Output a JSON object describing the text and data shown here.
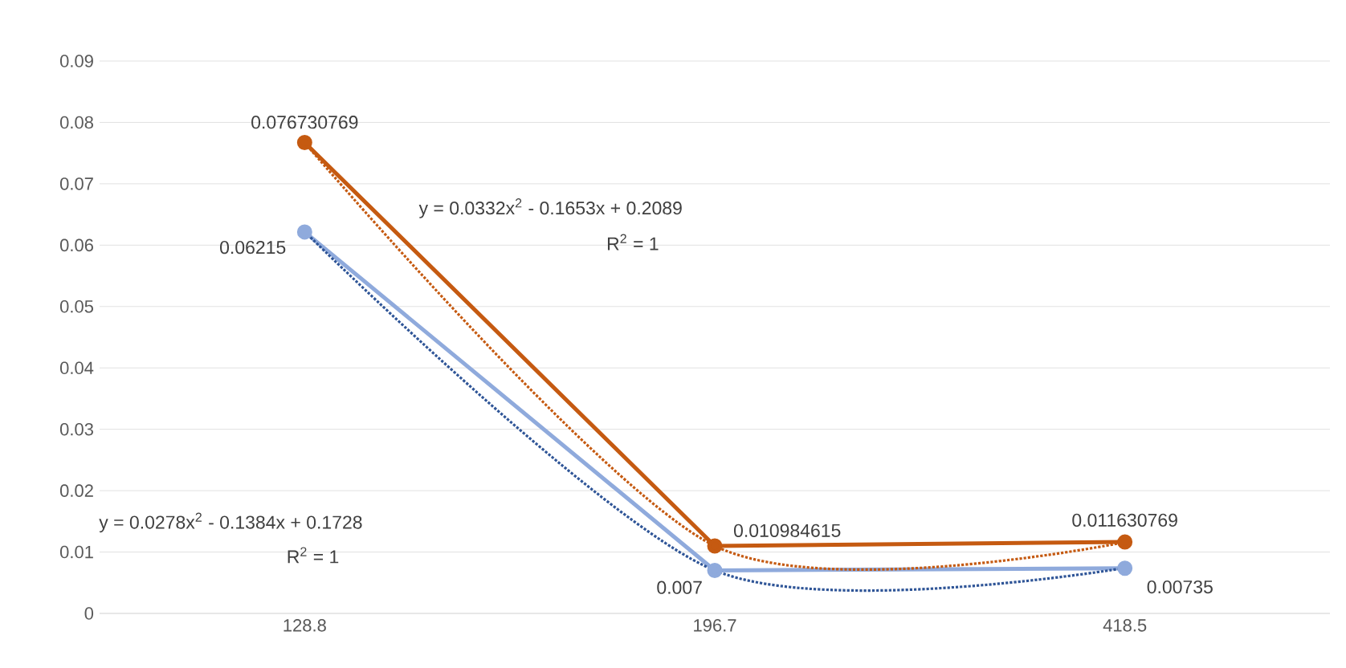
{
  "chart_data": {
    "type": "line",
    "categories": [
      "128.8",
      "196.7",
      "418.5"
    ],
    "ylim": [
      0,
      0.09
    ],
    "yticks": [
      0,
      0.01,
      0.02,
      0.03,
      0.04,
      0.05,
      0.06,
      0.07,
      0.08,
      0.09
    ],
    "grid": "y",
    "marker": "circle",
    "series": [
      {
        "color": "#c55a11",
        "line_style": "solid",
        "values": [
          0.076730769,
          0.010984615,
          0.011630769
        ],
        "value_labels": [
          "0.076730769",
          "0.010984615",
          "0.011630769"
        ]
      },
      {
        "color": "#8faadc",
        "line_style": "solid",
        "values": [
          0.06215,
          0.007,
          0.00735
        ],
        "value_labels": [
          "0.06215",
          "0.007",
          "0.00735"
        ]
      },
      {
        "type": "line",
        "color": "#c55a11",
        "line_style": "dotted",
        "marker": "none",
        "values": [
          0.0767,
          0.011,
          0.0116
        ]
      },
      {
        "type": "line",
        "color": "#2f5597",
        "line_style": "dotted",
        "marker": "none",
        "values": [
          0.0622,
          0.007,
          0.0074
        ]
      }
    ],
    "annotations": [
      "y = 0.0332x$^{2}$ - 0.1653x + 0.2089",
      "R$^{2}$ = 1",
      "y = 0.0278x$^{2}$ - 0.1384x + 0.1728",
      "R$^{2}$ = 1"
    ]
  }
}
